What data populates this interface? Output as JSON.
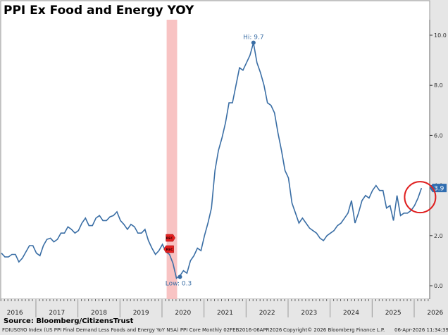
{
  "title": "PPI Ex Food and Energy YOY",
  "source": "Source: Bloomberg/CitizensTrust",
  "footer": {
    "description": "FDIUSGYO Index (US PPI Final Demand Less Foods and Energy YoY NSA) PPI Core Monthly 02FEB2016-06APR2026",
    "copyright": "Copyright© 2026 Bloomberg Finance L.P.",
    "timestamp": "06-Apr-2026 11:34:39"
  },
  "colors": {
    "line": "#3a6ea5",
    "recession": "#f7b8b8",
    "highlight_circle": "#e02020",
    "last_tag": "#2f6db0"
  },
  "chart_data": {
    "type": "line",
    "title": "PPI Ex Food and Energy YOY",
    "x_start": "2016-02",
    "frequency": "monthly",
    "x_tick_labels": [
      "2016",
      "2017",
      "2018",
      "2019",
      "2020",
      "2021",
      "2022",
      "2023",
      "2024",
      "2025",
      "2026"
    ],
    "y_tick_labels": [
      "0.0",
      "2.0",
      "4.0",
      "6.0",
      "8.0",
      "10.0"
    ],
    "ylim": [
      -0.6,
      10.6
    ],
    "y_axis_side": "right",
    "values": [
      1.3,
      1.15,
      1.15,
      1.25,
      1.25,
      0.95,
      1.1,
      1.35,
      1.6,
      1.6,
      1.3,
      1.2,
      1.6,
      1.85,
      1.9,
      1.75,
      1.85,
      2.1,
      2.1,
      2.35,
      2.25,
      2.1,
      2.2,
      2.5,
      2.7,
      2.4,
      2.4,
      2.7,
      2.8,
      2.6,
      2.6,
      2.75,
      2.8,
      2.95,
      2.6,
      2.45,
      2.25,
      2.45,
      2.35,
      2.1,
      2.1,
      2.25,
      1.8,
      1.5,
      1.25,
      1.4,
      1.65,
      1.35,
      1.25,
      0.9,
      0.3,
      0.4,
      0.6,
      0.5,
      1.0,
      1.2,
      1.5,
      1.4,
      2.0,
      2.5,
      3.1,
      4.6,
      5.4,
      5.9,
      6.5,
      7.3,
      7.3,
      8.0,
      8.7,
      8.6,
      8.9,
      9.2,
      9.7,
      8.9,
      8.5,
      8.0,
      7.3,
      7.2,
      6.9,
      6.1,
      5.4,
      4.6,
      4.3,
      3.3,
      2.9,
      2.5,
      2.7,
      2.5,
      2.3,
      2.2,
      2.1,
      1.9,
      1.8,
      2.0,
      2.1,
      2.2,
      2.4,
      2.5,
      2.7,
      2.9,
      3.4,
      2.5,
      2.9,
      3.4,
      3.6,
      3.5,
      3.8,
      4.0,
      3.8,
      3.8,
      3.1,
      3.2,
      2.6,
      3.6,
      2.8,
      2.9,
      2.9,
      3.0,
      3.2,
      3.5,
      3.9
    ],
    "annotations": {
      "high": "Hi: 9.7",
      "low": "Low: 0.3",
      "last": "3.9",
      "recession_flag": "REC"
    },
    "recession": [
      "2020-02",
      "2020-04"
    ],
    "grid": false,
    "legend": "none"
  }
}
